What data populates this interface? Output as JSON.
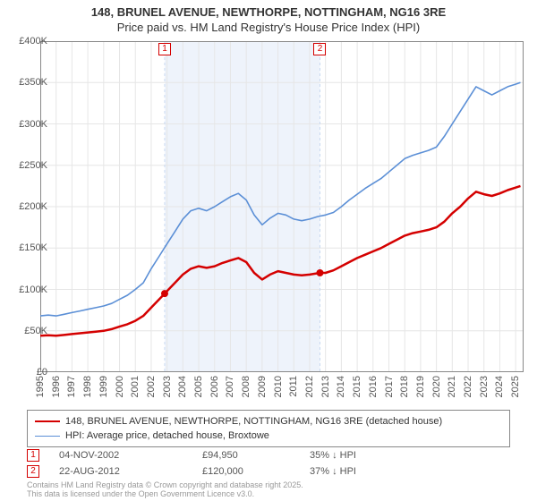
{
  "title_line1": "148, BRUNEL AVENUE, NEWTHORPE, NOTTINGHAM, NG16 3RE",
  "title_line2": "Price paid vs. HM Land Registry's House Price Index (HPI)",
  "chart": {
    "type": "line",
    "background_color": "#ffffff",
    "grid_color": "#e6e6e6",
    "axis_color": "#888888",
    "xlim": [
      1995,
      2025.5
    ],
    "ylim": [
      0,
      400000
    ],
    "y_ticks": [
      0,
      50000,
      100000,
      150000,
      200000,
      250000,
      300000,
      350000,
      400000
    ],
    "y_tick_labels": [
      "£0",
      "£50K",
      "£100K",
      "£150K",
      "£200K",
      "£250K",
      "£300K",
      "£350K",
      "£400K"
    ],
    "x_ticks": [
      1995,
      1996,
      1997,
      1998,
      1999,
      2000,
      2001,
      2002,
      2003,
      2004,
      2005,
      2006,
      2007,
      2008,
      2009,
      2010,
      2011,
      2012,
      2013,
      2014,
      2015,
      2016,
      2017,
      2018,
      2019,
      2020,
      2021,
      2022,
      2023,
      2024,
      2025
    ],
    "label_fontsize": 11,
    "title_fontsize": 13,
    "series": [
      {
        "name": "property",
        "label": "148, BRUNEL AVENUE, NEWTHORPE, NOTTINGHAM, NG16 3RE (detached house)",
        "color": "#d40000",
        "line_width": 2.5,
        "data": [
          [
            1995.0,
            44000
          ],
          [
            1995.5,
            44500
          ],
          [
            1996.0,
            44000
          ],
          [
            1996.5,
            45000
          ],
          [
            1997.0,
            46000
          ],
          [
            1997.5,
            47000
          ],
          [
            1998.0,
            48000
          ],
          [
            1998.5,
            49000
          ],
          [
            1999.0,
            50000
          ],
          [
            1999.5,
            52000
          ],
          [
            2000.0,
            55000
          ],
          [
            2000.5,
            58000
          ],
          [
            2001.0,
            62000
          ],
          [
            2001.5,
            68000
          ],
          [
            2002.0,
            78000
          ],
          [
            2002.5,
            88000
          ],
          [
            2002.85,
            95000
          ],
          [
            2003.0,
            98000
          ],
          [
            2003.5,
            108000
          ],
          [
            2004.0,
            118000
          ],
          [
            2004.5,
            125000
          ],
          [
            2005.0,
            128000
          ],
          [
            2005.5,
            126000
          ],
          [
            2006.0,
            128000
          ],
          [
            2006.5,
            132000
          ],
          [
            2007.0,
            135000
          ],
          [
            2007.5,
            138000
          ],
          [
            2008.0,
            133000
          ],
          [
            2008.5,
            120000
          ],
          [
            2009.0,
            112000
          ],
          [
            2009.5,
            118000
          ],
          [
            2010.0,
            122000
          ],
          [
            2010.5,
            120000
          ],
          [
            2011.0,
            118000
          ],
          [
            2011.5,
            117000
          ],
          [
            2012.0,
            118000
          ],
          [
            2012.65,
            120000
          ],
          [
            2013.0,
            120000
          ],
          [
            2013.5,
            123000
          ],
          [
            2014.0,
            128000
          ],
          [
            2014.5,
            133000
          ],
          [
            2015.0,
            138000
          ],
          [
            2015.5,
            142000
          ],
          [
            2016.0,
            146000
          ],
          [
            2016.5,
            150000
          ],
          [
            2017.0,
            155000
          ],
          [
            2017.5,
            160000
          ],
          [
            2018.0,
            165000
          ],
          [
            2018.5,
            168000
          ],
          [
            2019.0,
            170000
          ],
          [
            2019.5,
            172000
          ],
          [
            2020.0,
            175000
          ],
          [
            2020.5,
            182000
          ],
          [
            2021.0,
            192000
          ],
          [
            2021.5,
            200000
          ],
          [
            2022.0,
            210000
          ],
          [
            2022.5,
            218000
          ],
          [
            2023.0,
            215000
          ],
          [
            2023.5,
            213000
          ],
          [
            2024.0,
            216000
          ],
          [
            2024.5,
            220000
          ],
          [
            2025.0,
            223000
          ],
          [
            2025.3,
            225000
          ]
        ]
      },
      {
        "name": "hpi",
        "label": "HPI: Average price, detached house, Broxtowe",
        "color": "#5b8fd6",
        "line_width": 1.6,
        "data": [
          [
            1995.0,
            68000
          ],
          [
            1995.5,
            69000
          ],
          [
            1996.0,
            68000
          ],
          [
            1996.5,
            70000
          ],
          [
            1997.0,
            72000
          ],
          [
            1997.5,
            74000
          ],
          [
            1998.0,
            76000
          ],
          [
            1998.5,
            78000
          ],
          [
            1999.0,
            80000
          ],
          [
            1999.5,
            83000
          ],
          [
            2000.0,
            88000
          ],
          [
            2000.5,
            93000
          ],
          [
            2001.0,
            100000
          ],
          [
            2001.5,
            108000
          ],
          [
            2002.0,
            125000
          ],
          [
            2002.5,
            140000
          ],
          [
            2003.0,
            155000
          ],
          [
            2003.5,
            170000
          ],
          [
            2004.0,
            185000
          ],
          [
            2004.5,
            195000
          ],
          [
            2005.0,
            198000
          ],
          [
            2005.5,
            195000
          ],
          [
            2006.0,
            200000
          ],
          [
            2006.5,
            206000
          ],
          [
            2007.0,
            212000
          ],
          [
            2007.5,
            216000
          ],
          [
            2008.0,
            208000
          ],
          [
            2008.5,
            190000
          ],
          [
            2009.0,
            178000
          ],
          [
            2009.5,
            186000
          ],
          [
            2010.0,
            192000
          ],
          [
            2010.5,
            190000
          ],
          [
            2011.0,
            185000
          ],
          [
            2011.5,
            183000
          ],
          [
            2012.0,
            185000
          ],
          [
            2012.5,
            188000
          ],
          [
            2013.0,
            190000
          ],
          [
            2013.5,
            193000
          ],
          [
            2014.0,
            200000
          ],
          [
            2014.5,
            208000
          ],
          [
            2015.0,
            215000
          ],
          [
            2015.5,
            222000
          ],
          [
            2016.0,
            228000
          ],
          [
            2016.5,
            234000
          ],
          [
            2017.0,
            242000
          ],
          [
            2017.5,
            250000
          ],
          [
            2018.0,
            258000
          ],
          [
            2018.5,
            262000
          ],
          [
            2019.0,
            265000
          ],
          [
            2019.5,
            268000
          ],
          [
            2020.0,
            272000
          ],
          [
            2020.5,
            285000
          ],
          [
            2021.0,
            300000
          ],
          [
            2021.5,
            315000
          ],
          [
            2022.0,
            330000
          ],
          [
            2022.5,
            345000
          ],
          [
            2023.0,
            340000
          ],
          [
            2023.5,
            335000
          ],
          [
            2024.0,
            340000
          ],
          [
            2024.5,
            345000
          ],
          [
            2025.0,
            348000
          ],
          [
            2025.3,
            350000
          ]
        ]
      }
    ],
    "transactions": [
      {
        "n": "1",
        "x": 2002.85,
        "date": "04-NOV-2002",
        "price": "£94,950",
        "delta": "35% ↓ HPI",
        "color": "#d40000"
      },
      {
        "n": "2",
        "x": 2012.65,
        "date": "22-AUG-2012",
        "price": "£120,000",
        "delta": "37% ↓ HPI",
        "color": "#d40000"
      }
    ],
    "tx_band_color": "#eef3fb",
    "tx_line_color": "#c9d9f0"
  },
  "legend_border_color": "#888888",
  "attribution_line1": "Contains HM Land Registry data © Crown copyright and database right 2025.",
  "attribution_line2": "This data is licensed under the Open Government Licence v3.0."
}
